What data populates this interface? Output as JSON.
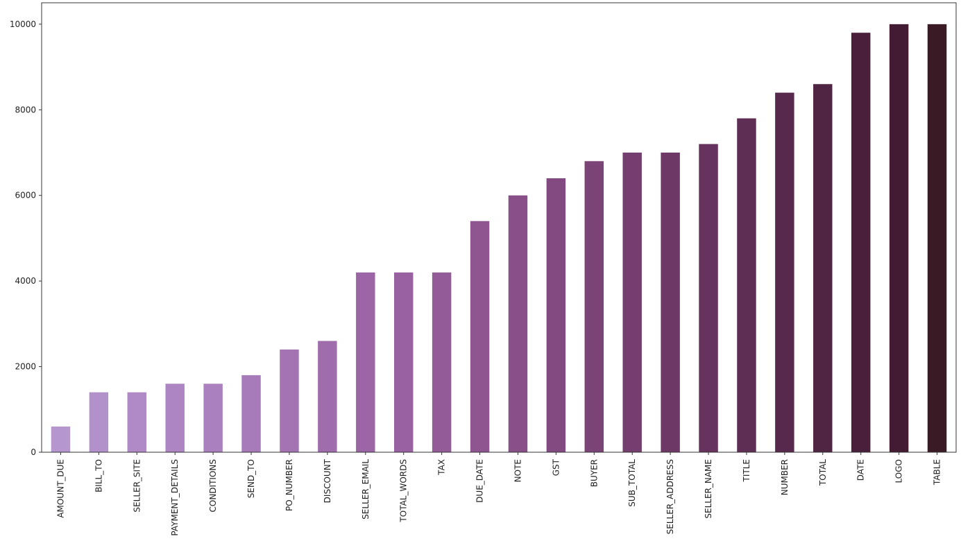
{
  "chart_data": {
    "type": "bar",
    "title": "",
    "xlabel": "",
    "ylabel": "",
    "ylim": [
      0,
      10500
    ],
    "yticks": [
      0,
      2000,
      4000,
      6000,
      8000,
      10000
    ],
    "grid": false,
    "categories": [
      "AMOUNT_DUE",
      "BILL_TO",
      "SELLER_SITE",
      "PAYMENT_DETAILS",
      "CONDITIONS",
      "SEND_TO",
      "PO_NUMBER",
      "DISCOUNT",
      "SELLER_EMAIL",
      "TOTAL_WORDS",
      "TAX",
      "DUE_DATE",
      "NOTE",
      "GST",
      "BUYER",
      "SUB_TOTAL",
      "SELLER_ADDRESS",
      "SELLER_NAME",
      "TITLE",
      "NUMBER",
      "TOTAL",
      "DATE",
      "LOGO",
      "TABLE"
    ],
    "values": [
      600,
      1400,
      1400,
      1600,
      1600,
      1800,
      2400,
      2600,
      4200,
      4200,
      4200,
      5400,
      6000,
      6400,
      6800,
      7000,
      7000,
      7200,
      7800,
      8400,
      8600,
      9800,
      10000,
      10000
    ],
    "colors": [
      "#b596cd",
      "#b290c9",
      "#b08ac6",
      "#ad85c2",
      "#aa80be",
      "#a77aba",
      "#a373b2",
      "#a06dac",
      "#9c66a6",
      "#98619f",
      "#935b98",
      "#8e5590",
      "#884f88",
      "#824a80",
      "#7b4477",
      "#743e6f",
      "#6d3866",
      "#66335e",
      "#5f2e55",
      "#57294c",
      "#502443",
      "#4a1f3b",
      "#431b33",
      "#3a1a24"
    ]
  }
}
